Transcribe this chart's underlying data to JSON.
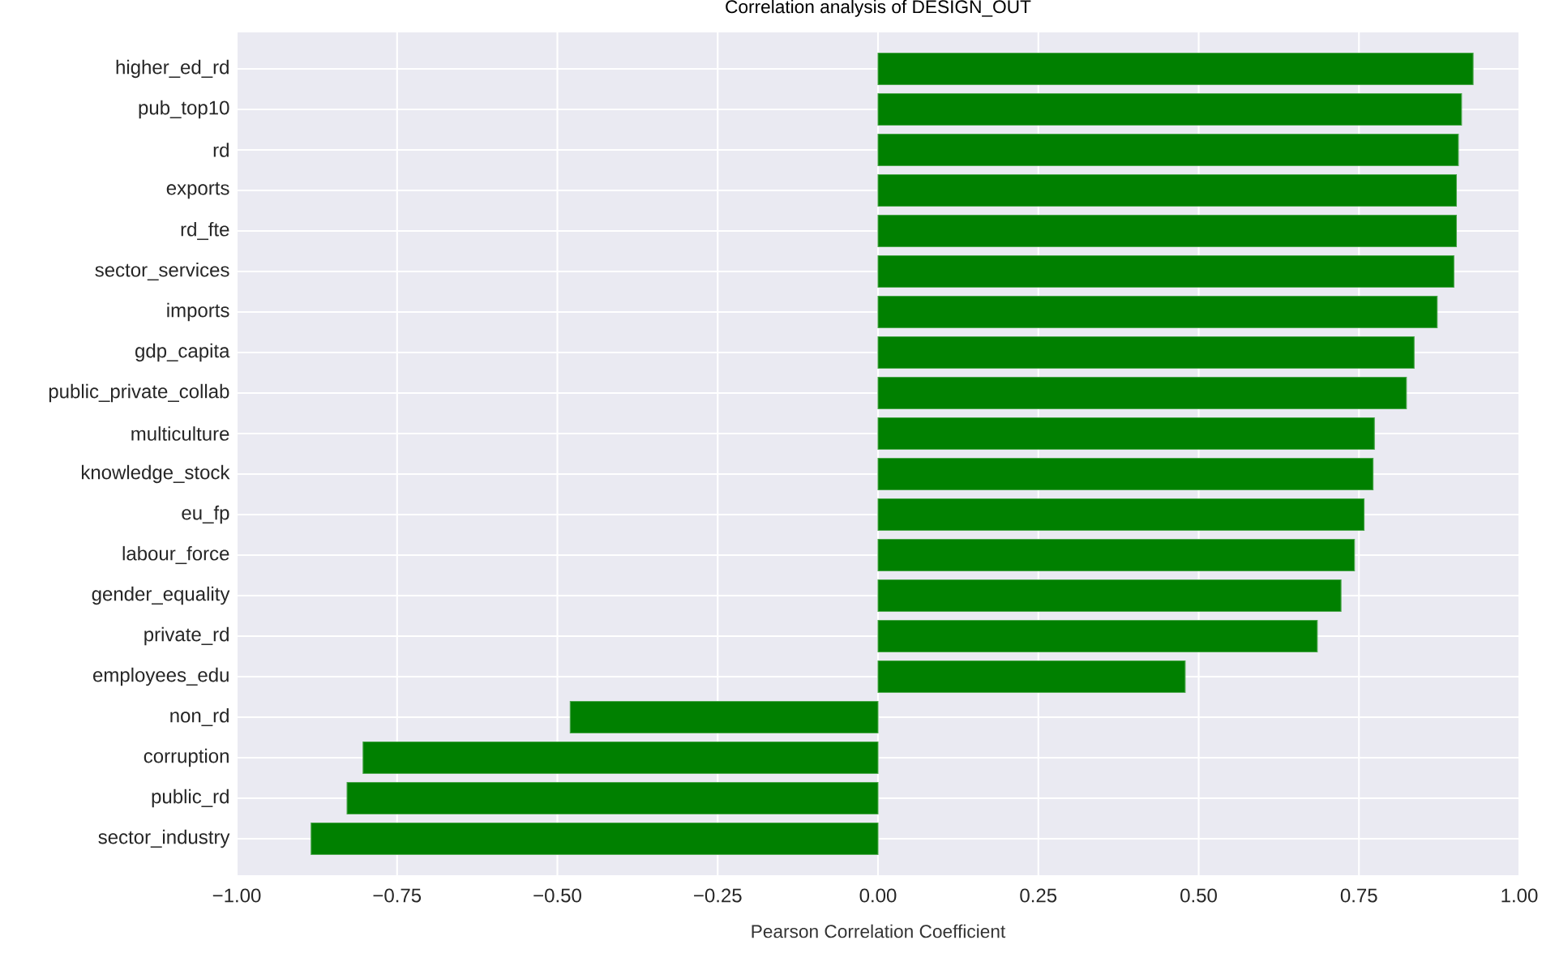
{
  "chart_data": {
    "type": "bar",
    "orientation": "horizontal",
    "title": "Correlation analysis of DESIGN_OUT",
    "xlabel": "Pearson Correlation Coefficient",
    "categories": [
      "higher_ed_rd",
      "pub_top10",
      "rd",
      "exports",
      "rd_fte",
      "sector_services",
      "imports",
      "gdp_capita",
      "public_private_collab",
      "multiculture",
      "knowledge_stock",
      "eu_fp",
      "labour_force",
      "gender_equality",
      "private_rd",
      "employees_edu",
      "non_rd",
      "corruption",
      "public_rd",
      "sector_industry"
    ],
    "values": [
      0.928,
      0.91,
      0.905,
      0.902,
      0.902,
      0.898,
      0.872,
      0.836,
      0.824,
      0.774,
      0.772,
      0.758,
      0.743,
      0.722,
      0.685,
      0.479,
      -0.48,
      -0.803,
      -0.828,
      -0.884
    ],
    "color": "#008000",
    "xlim": [
      -1.0,
      1.0
    ],
    "xticks": [
      {
        "value": -1.0,
        "label": "−1.00"
      },
      {
        "value": -0.75,
        "label": "−0.75"
      },
      {
        "value": -0.5,
        "label": "−0.50"
      },
      {
        "value": -0.25,
        "label": "−0.25"
      },
      {
        "value": 0.0,
        "label": "0.00"
      },
      {
        "value": 0.25,
        "label": "0.25"
      },
      {
        "value": 0.5,
        "label": "0.50"
      },
      {
        "value": 0.75,
        "label": "0.75"
      },
      {
        "value": 1.0,
        "label": "1.00"
      }
    ],
    "grid": true
  }
}
